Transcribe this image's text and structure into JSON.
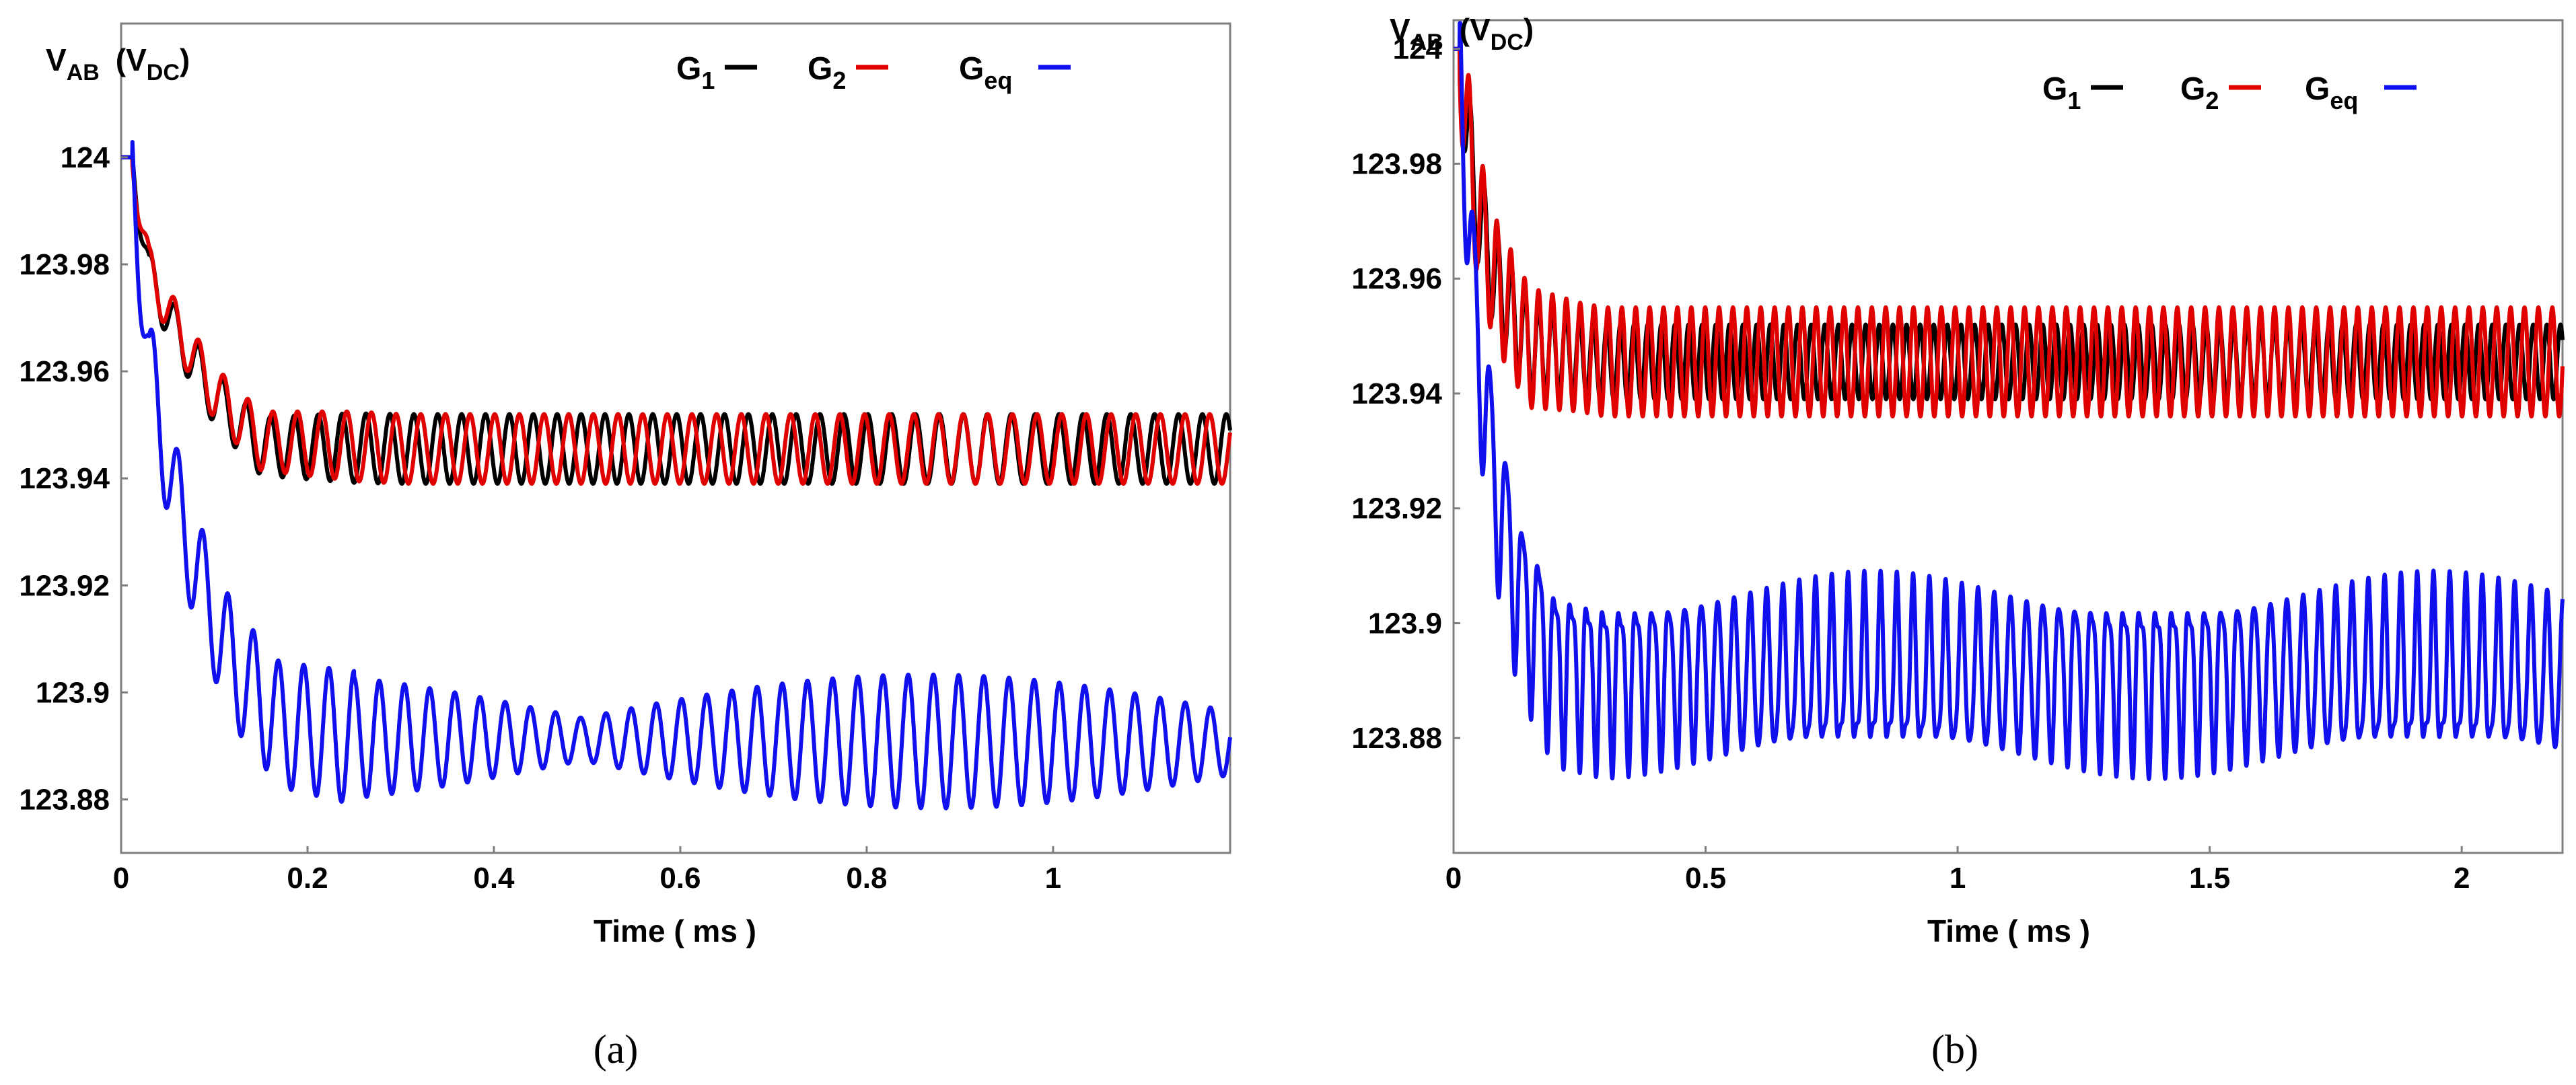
{
  "chart_data": [
    {
      "type": "line",
      "panel": "a",
      "caption": "(a)",
      "ylabel_main": "V",
      "ylabel_main_sub": "AB",
      "ylabel_unit_open": "(V",
      "ylabel_unit_sub": "DC",
      "ylabel_unit_close": ")",
      "xlabel": "Time ( ms )",
      "xlim": [
        0,
        1.19
      ],
      "ylim": [
        123.87,
        124.025
      ],
      "xticks": [
        0,
        0.2,
        0.4,
        0.6,
        0.8,
        1
      ],
      "xtick_labels": [
        "0",
        "0.2",
        "0.4",
        "0.6",
        "0.8",
        "1"
      ],
      "yticks": [
        123.88,
        123.9,
        123.92,
        123.94,
        123.96,
        123.98,
        124
      ],
      "ytick_labels": [
        "123.88",
        "123.9",
        "123.92",
        "123.94",
        "123.96",
        "123.98",
        "124"
      ],
      "legend_position": "top-right",
      "series": [
        {
          "name": "G1",
          "label_main": "G",
          "label_sub": "1",
          "color": "#000000",
          "steady_center": 123.9455,
          "steady_amp": 0.0065,
          "freq_per_ms": 39.0,
          "envelope": [
            [
              0,
              124.0
            ],
            [
              0.012,
              124.0
            ],
            [
              0.03,
              123.978
            ],
            [
              0.06,
              123.967
            ],
            [
              0.1,
              123.955
            ],
            [
              0.15,
              123.946
            ],
            [
              0.3,
              123.9455
            ],
            [
              1.19,
              123.9455
            ]
          ],
          "ripple_amp_start": 0.004,
          "phase": 0.0
        },
        {
          "name": "G2",
          "label_main": "G",
          "label_sub": "2",
          "color": "#e00000",
          "steady_center": 123.9455,
          "steady_amp": 0.0065,
          "freq_per_ms": 37.8,
          "envelope": [
            [
              0,
              124.0
            ],
            [
              0.012,
              124.0
            ],
            [
              0.03,
              123.979
            ],
            [
              0.06,
              123.968
            ],
            [
              0.1,
              123.956
            ],
            [
              0.15,
              123.947
            ],
            [
              0.3,
              123.9455
            ],
            [
              1.19,
              123.9455
            ]
          ],
          "ripple_amp_start": 0.004,
          "phase": 0.6
        },
        {
          "name": "Geq",
          "label_main": "G",
          "label_sub": "eq",
          "color": "#1010ee",
          "steady_center": 123.8905,
          "steady_amp": 0.0125,
          "freq_per_ms": 37.0,
          "beat_period_ms": 0.75,
          "beat_min_amp": 0.004,
          "envelope": [
            [
              0,
              124.0
            ],
            [
              0.012,
              124.0
            ],
            [
              0.03,
              123.96
            ],
            [
              0.06,
              123.935
            ],
            [
              0.09,
              123.918
            ],
            [
              0.12,
              123.905
            ],
            [
              0.17,
              123.894
            ],
            [
              0.25,
              123.8915
            ],
            [
              1.19,
              123.8905
            ]
          ],
          "ripple_amp_start": 0.01,
          "phase": 0.0
        }
      ]
    },
    {
      "type": "line",
      "panel": "b",
      "caption": "(b)",
      "ylabel_main": "V",
      "ylabel_main_sub": "AB",
      "ylabel_unit_open": "(V",
      "ylabel_unit_sub": "DC",
      "ylabel_unit_close": ")",
      "xlabel": "Time ( ms )",
      "xlim": [
        0,
        2.2
      ],
      "ylim": [
        123.86,
        124.005
      ],
      "xticks": [
        0,
        0.5,
        1,
        1.5,
        2
      ],
      "xtick_labels": [
        "0",
        "0.5",
        "1",
        "1.5",
        "2"
      ],
      "yticks": [
        123.88,
        123.9,
        123.92,
        123.94,
        123.96,
        123.98,
        124
      ],
      "ytick_labels": [
        "123.88",
        "123.9",
        "123.92",
        "123.94",
        "123.96",
        "123.98",
        "124"
      ],
      "legend_position": "top-right",
      "series": [
        {
          "name": "G1",
          "label_main": "G",
          "label_sub": "1",
          "color": "#000000",
          "steady_center": 123.9455,
          "steady_amp": 0.0065,
          "freq_per_ms": 37.0,
          "envelope": [
            [
              0,
              124.0
            ],
            [
              0.012,
              124.0
            ],
            [
              0.04,
              123.975
            ],
            [
              0.08,
              123.96
            ],
            [
              0.15,
              123.948
            ],
            [
              0.3,
              123.9455
            ],
            [
              2.2,
              123.9455
            ]
          ],
          "ripple_amp_start": 0.01,
          "phase": 0.0
        },
        {
          "name": "G2",
          "label_main": "G",
          "label_sub": "2",
          "color": "#e00000",
          "steady_center": 123.9455,
          "steady_amp": 0.0095,
          "freq_per_ms": 36.3,
          "envelope": [
            [
              0,
              124.0
            ],
            [
              0.012,
              124.0
            ],
            [
              0.04,
              123.975
            ],
            [
              0.08,
              123.96
            ],
            [
              0.15,
              123.948
            ],
            [
              0.3,
              123.9455
            ],
            [
              2.2,
              123.9455
            ]
          ],
          "ripple_amp_start": 0.012,
          "phase": 0.8
        },
        {
          "name": "Geq",
          "label_main": "G",
          "label_sub": "eq",
          "color": "#1010ee",
          "steady_center": 123.891,
          "steady_amp": 0.0135,
          "freq_per_ms": 31.0,
          "secondary_freq_per_ms": 62.0,
          "envelope": [
            [
              0,
              124.0
            ],
            [
              0.012,
              124.0
            ],
            [
              0.04,
              123.955
            ],
            [
              0.08,
              123.925
            ],
            [
              0.13,
              123.905
            ],
            [
              0.2,
              123.893
            ],
            [
              0.3,
              123.891
            ],
            [
              2.2,
              123.891
            ]
          ],
          "ripple_amp_start": 0.015,
          "phase": 0.0
        }
      ]
    }
  ]
}
